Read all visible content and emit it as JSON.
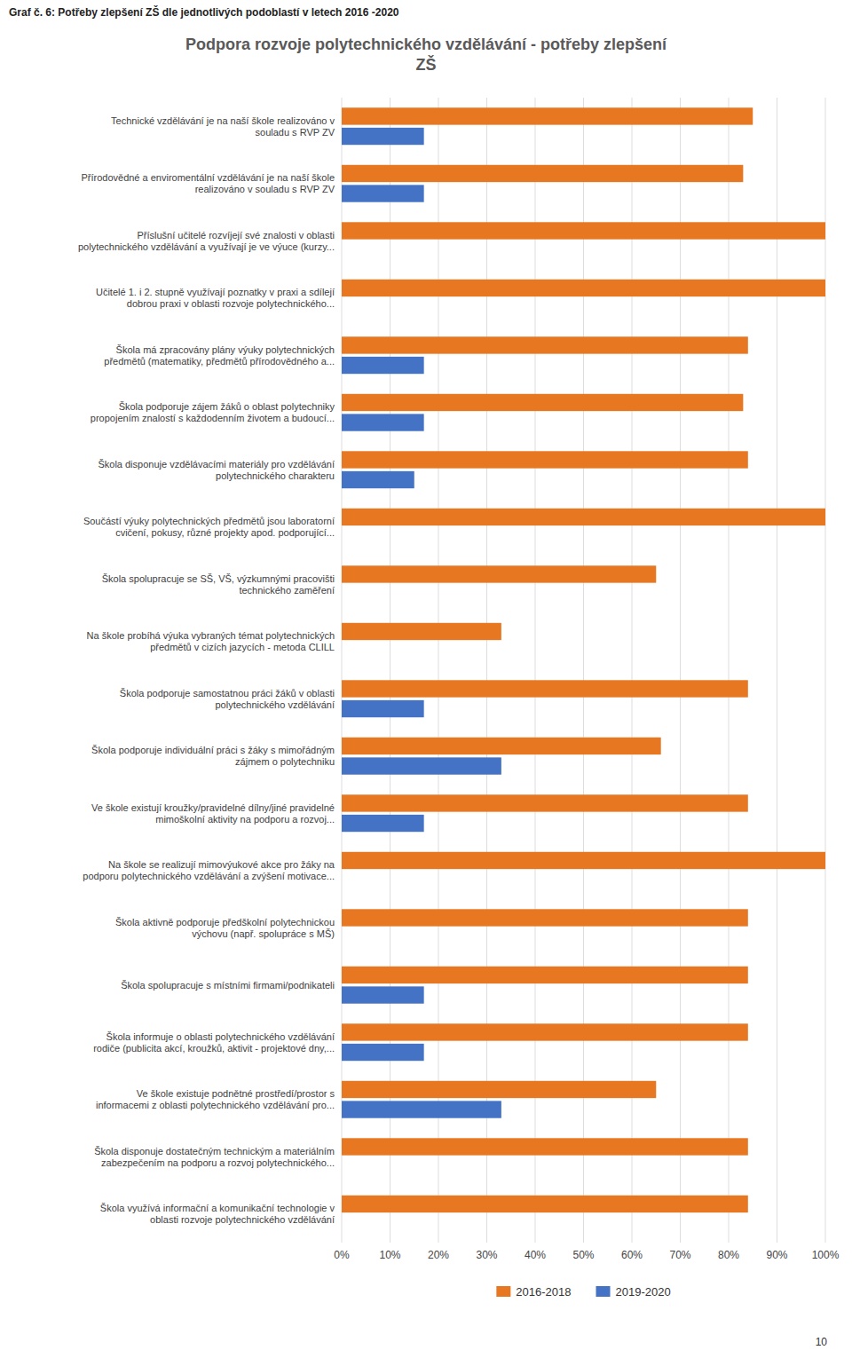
{
  "chart_data": {
    "type": "bar",
    "orientation": "horizontal",
    "subtitle": "Graf č. 6: Potřeby zlepšení ZŠ dle jednotlivých podoblastí v letech 2016 -2020",
    "title": "Podpora rozvoje polytechnického vzdělávání - potřeby zlepšení\nZŠ",
    "categories": [
      "Technické vzdělávání je na naší škole realizováno v\nsouladu s RVP ZV",
      "Přírodovědné a enviromentální vzdělávání je na naší škole\nrealizováno v souladu s RVP ZV",
      "Příslušní učitelé rozvíjejí své znalosti v oblasti\npolytechnického vzdělávání a využívají je ve výuce (kurzy...",
      "Učitelé 1. i 2. stupně využívají poznatky v praxi a sdílejí\ndobrou praxi v oblasti rozvoje polytechnického...",
      "Škola má zpracovány plány výuky polytechnických\npředmětů (matematiky, předmětů přírodovědného a...",
      "Škola podporuje zájem žáků o oblast polytechniky\npropojením znalostí s každodenním životem a budoucí...",
      "Škola disponuje vzdělávacími materiály pro vzdělávání\npolytechnického charakteru",
      "Součástí výuky polytechnických předmětů jsou laboratorní\ncvičení, pokusy, různé projekty apod. podporující...",
      "Škola spolupracuje se SŠ, VŠ, výzkumnými pracovišti\ntechnického zaměření",
      "Na škole probíhá výuka vybraných témat polytechnických\npředmětů v cizích jazycích - metoda CLILL",
      "Škola podporuje samostatnou práci žáků v oblasti\npolytechnického vzdělávání",
      "Škola podporuje individuální práci s žáky s mimořádným\nzájmem o polytechniku",
      "Ve škole existují kroužky/pravidelné dílny/jiné pravidelné\nmimoškolní aktivity na podporu a rozvoj...",
      "Na škole se realizují mimovýukové akce pro žáky na\npodporu polytechnického vzdělávání a zvýšení motivace...",
      "Škola aktivně podporuje předškolní polytechnickou\nvýchovu (např. spolupráce s MŠ)",
      "Škola spolupracuje s místními firmami/podnikateli",
      "Škola informuje o oblasti polytechnického vzdělávání\nrodiče (publicita akcí, kroužků, aktivit - projektové dny,...",
      "Ve škole existuje podnětné prostředí/prostor s\ninformacemi z oblasti polytechnického vzdělávání pro...",
      "Škola disponuje dostatečným technickým a materiálním\nzabezpečením na podporu a rozvoj polytechnického...",
      "Škola využívá informační a komunikační technologie v\noblasti rozvoje polytechnického vzdělávání"
    ],
    "series": [
      {
        "name": "2016-2018",
        "color": "#E87722",
        "values": [
          85,
          83,
          100,
          100,
          84,
          83,
          84,
          100,
          65,
          33,
          84,
          66,
          84,
          100,
          84,
          84,
          84,
          65,
          84,
          84
        ]
      },
      {
        "name": "2019-2020",
        "color": "#4472C4",
        "values": [
          17,
          17,
          0,
          0,
          17,
          17,
          15,
          0,
          0,
          0,
          17,
          33,
          17,
          0,
          0,
          17,
          17,
          33,
          0,
          0
        ]
      }
    ],
    "xlim": [
      0,
      100
    ],
    "xticks": [
      {
        "value": 0,
        "label": "0%"
      },
      {
        "value": 10,
        "label": "10%"
      },
      {
        "value": 20,
        "label": "20%"
      },
      {
        "value": 30,
        "label": "30%"
      },
      {
        "value": 40,
        "label": "40%"
      },
      {
        "value": 50,
        "label": "50%"
      },
      {
        "value": 60,
        "label": "60%"
      },
      {
        "value": 70,
        "label": "70%"
      },
      {
        "value": 80,
        "label": "80%"
      },
      {
        "value": 90,
        "label": "90%"
      },
      {
        "value": 100,
        "label": "100%"
      }
    ],
    "grid": true,
    "legend": "bottom",
    "annotations": [
      "10"
    ]
  }
}
